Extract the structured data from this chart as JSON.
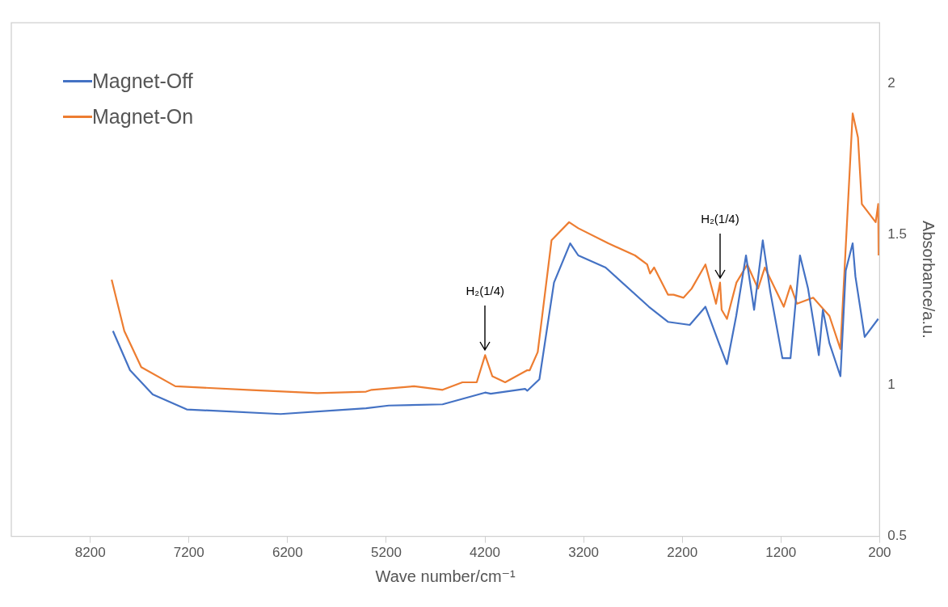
{
  "chart_data": {
    "type": "line",
    "xlabel": "Wave number/cm⁻¹",
    "ylabel": "Absorbance/a.u.",
    "xlim": [
      9000,
      200
    ],
    "xticks": [
      8200,
      7200,
      6200,
      5200,
      4200,
      3200,
      2200,
      1200,
      200
    ],
    "ylim": [
      0.5,
      2.2
    ],
    "yticks": [
      0.5,
      1,
      1.5,
      2
    ],
    "legend": "top left",
    "line_style": "solid",
    "marker": "none",
    "annotations": [
      {
        "text": "H₂(1/4)",
        "x": 4198,
        "y": 1.1
      },
      {
        "text": "H₂(1/4)",
        "x": 1817,
        "y": 1.34
      }
    ],
    "series": [
      {
        "name": "Magnet-Off",
        "color": "#4472c4",
        "x": [
          7970,
          7797,
          7567,
          7222,
          6271,
          5405,
          5175,
          4629,
          4428,
          4198,
          4141,
          3793,
          3771,
          3648,
          3500,
          3336,
          3254,
          2977,
          2538,
          2345,
          2124,
          1965,
          1829,
          1747,
          1653,
          1554,
          1472,
          1384,
          1308,
          1185,
          1103,
          1007,
          925,
          816,
          775,
          709,
          597,
          543,
          473,
          445,
          351,
          214
        ],
        "values": [
          1.18,
          1.05,
          0.97,
          0.92,
          0.905,
          0.924,
          0.933,
          0.937,
          0.955,
          0.976,
          0.972,
          0.988,
          0.982,
          1.02,
          1.34,
          1.47,
          1.43,
          1.39,
          1.26,
          1.21,
          1.2,
          1.26,
          1.14,
          1.07,
          1.23,
          1.43,
          1.25,
          1.48,
          1.31,
          1.09,
          1.09,
          1.43,
          1.32,
          1.1,
          1.25,
          1.14,
          1.03,
          1.38,
          1.47,
          1.36,
          1.16,
          1.22
        ]
      },
      {
        "name": "Magnet-On",
        "color": "#ed7d31",
        "x": [
          7983,
          7855,
          7683,
          7338,
          6562,
          5898,
          5405,
          5348,
          4917,
          4629,
          4428,
          4283,
          4198,
          4125,
          3995,
          3771,
          3746,
          3665,
          3525,
          3347,
          3254,
          2950,
          2679,
          2556,
          2526,
          2485,
          2345,
          2288,
          2187,
          2105,
          1965,
          1858,
          1817,
          1801,
          1747,
          1651,
          1541,
          1432,
          1363,
          1171,
          1103,
          1037,
          873,
          709,
          597,
          473,
          419,
          380,
          240,
          214,
          210
        ],
        "values": [
          1.35,
          1.18,
          1.06,
          0.997,
          0.984,
          0.974,
          0.979,
          0.985,
          0.997,
          0.985,
          1.01,
          1.01,
          1.1,
          1.03,
          1.01,
          1.05,
          1.05,
          1.11,
          1.48,
          1.54,
          1.52,
          1.47,
          1.43,
          1.4,
          1.37,
          1.39,
          1.3,
          1.3,
          1.29,
          1.32,
          1.4,
          1.27,
          1.34,
          1.25,
          1.22,
          1.34,
          1.4,
          1.32,
          1.39,
          1.26,
          1.33,
          1.27,
          1.29,
          1.23,
          1.12,
          1.9,
          1.82,
          1.6,
          1.54,
          1.6,
          1.43
        ]
      }
    ]
  }
}
